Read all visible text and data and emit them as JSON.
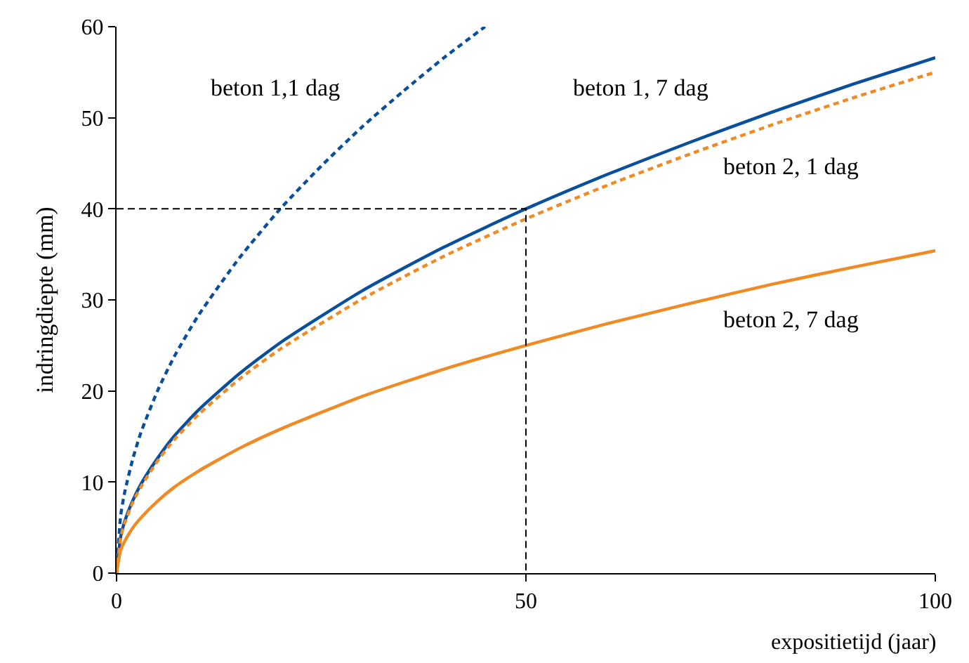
{
  "chart_data": {
    "type": "line",
    "xlabel": "expositietijd (jaar)",
    "ylabel": "indringdiepte (mm)",
    "xlim": [
      0,
      100
    ],
    "ylim": [
      0,
      60
    ],
    "xticks": [
      0,
      50,
      100
    ],
    "yticks": [
      0,
      10,
      20,
      30,
      40,
      50,
      60
    ],
    "legend": false,
    "marker": "none",
    "series": [
      {
        "name": "beton 1,1 dag",
        "color": "#0a4f9c",
        "line_style": "dotted",
        "x": [
          0,
          0.5,
          1,
          2,
          3,
          5,
          7,
          10,
          15,
          20,
          25,
          30,
          35,
          40,
          45
        ],
        "values": [
          0,
          6.3,
          8.9,
          12.6,
          15.5,
          20,
          23.7,
          28.3,
          34.6,
          40,
          44.7,
          49,
          52.9,
          56.6,
          60
        ]
      },
      {
        "name": "beton 1, 7 dag",
        "color": "#0a4f9c",
        "line_style": "solid",
        "x": [
          0,
          0.5,
          1,
          2,
          3,
          5,
          7,
          10,
          15,
          20,
          30,
          40,
          50,
          60,
          70,
          80,
          90,
          100
        ],
        "values": [
          0,
          4,
          5.7,
          8,
          9.8,
          12.6,
          15,
          17.9,
          21.9,
          25.3,
          31,
          35.8,
          40,
          43.8,
          47.3,
          50.6,
          53.7,
          56.6
        ]
      },
      {
        "name": "beton 2, 1 dag",
        "color": "#f08a24",
        "line_style": "dotted",
        "x": [
          0,
          0.5,
          1,
          2,
          3,
          5,
          7,
          10,
          15,
          20,
          30,
          40,
          50,
          60,
          70,
          80,
          90,
          100
        ],
        "values": [
          0,
          3.9,
          5.5,
          7.8,
          9.5,
          12.3,
          14.6,
          17.4,
          21.3,
          24.6,
          30.1,
          34.8,
          38.9,
          42.6,
          46,
          49.2,
          52.2,
          55
        ]
      },
      {
        "name": "beton 2, 7 dag",
        "color": "#f08a24",
        "line_style": "solid",
        "x": [
          0,
          0.5,
          1,
          2,
          3,
          5,
          7,
          10,
          15,
          20,
          30,
          40,
          50,
          60,
          70,
          80,
          90,
          100
        ],
        "values": [
          0,
          2.5,
          3.5,
          5,
          6.1,
          7.9,
          9.4,
          11.2,
          13.7,
          15.8,
          19.4,
          22.4,
          25,
          27.4,
          29.6,
          31.7,
          33.6,
          35.4
        ]
      },
      {
        "color": "#000000",
        "line_style": "dashed",
        "x": [
          0,
          50,
          50
        ],
        "values": [
          40,
          40,
          0
        ]
      }
    ]
  }
}
